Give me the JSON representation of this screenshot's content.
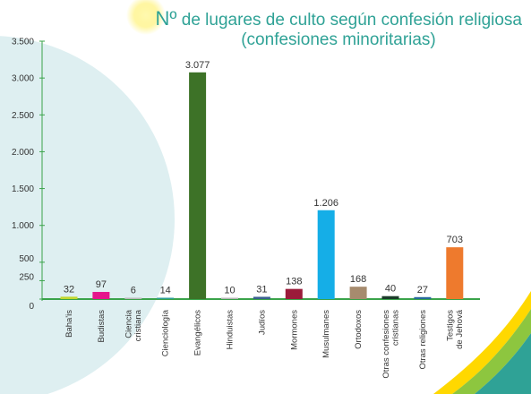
{
  "colors": {
    "title": "#2fa296",
    "axis": "#3aa34a",
    "circle": "#deeff1",
    "glow": "#fff27a",
    "stripe_yellow": "#ffd800",
    "stripe_green": "#8dc63f",
    "stripe_teal": "#2fa296"
  },
  "chart_data": {
    "type": "bar",
    "title_prefix": "Nº",
    "title_line1": " de lugares de culto según confesión religiosa",
    "title_line2": "(confesiones minoritarias)",
    "xlabel": "",
    "ylabel": "",
    "ylim": [
      0,
      3500
    ],
    "grid": false,
    "legend": "none",
    "yticks": [
      {
        "value": 0,
        "label": "0"
      },
      {
        "value": 250,
        "label": "250"
      },
      {
        "value": 500,
        "label": "500"
      },
      {
        "value": 1000,
        "label": "1.000"
      },
      {
        "value": 1500,
        "label": "1.500"
      },
      {
        "value": 2000,
        "label": "2.000"
      },
      {
        "value": 2500,
        "label": "2.500"
      },
      {
        "value": 3000,
        "label": "3.000"
      },
      {
        "value": 3500,
        "label": "3.500"
      }
    ],
    "categories": [
      [
        "Baha'is"
      ],
      [
        "Budistas"
      ],
      [
        "Ciencia",
        "cristiana"
      ],
      [
        "Cienciología"
      ],
      [
        "Evangélicos"
      ],
      [
        "Hinduistas"
      ],
      [
        "Judíos"
      ],
      [
        "Mormones"
      ],
      [
        "Musulmanes"
      ],
      [
        "Ortodoxos"
      ],
      [
        "Otras confesiones",
        "cristianas"
      ],
      [
        "Otras religiones"
      ],
      [
        "Testigos",
        "de Jehová"
      ]
    ],
    "values": [
      32,
      97,
      6,
      14,
      3077,
      10,
      31,
      138,
      1206,
      168,
      40,
      27,
      703
    ],
    "value_labels": [
      "32",
      "97",
      "6",
      "14",
      "3.077",
      "10",
      "31",
      "138",
      "1.206",
      "168",
      "40",
      "27",
      "703"
    ],
    "bar_colors": [
      "#c2d82e",
      "#e5168c",
      "#b7b7b7",
      "#2e9e96",
      "#3d7227",
      "#b4b4b4",
      "#3a5f8f",
      "#9b1b3a",
      "#15aee7",
      "#a68b6e",
      "#1c3b2a",
      "#27699a",
      "#ee7a2d"
    ]
  }
}
